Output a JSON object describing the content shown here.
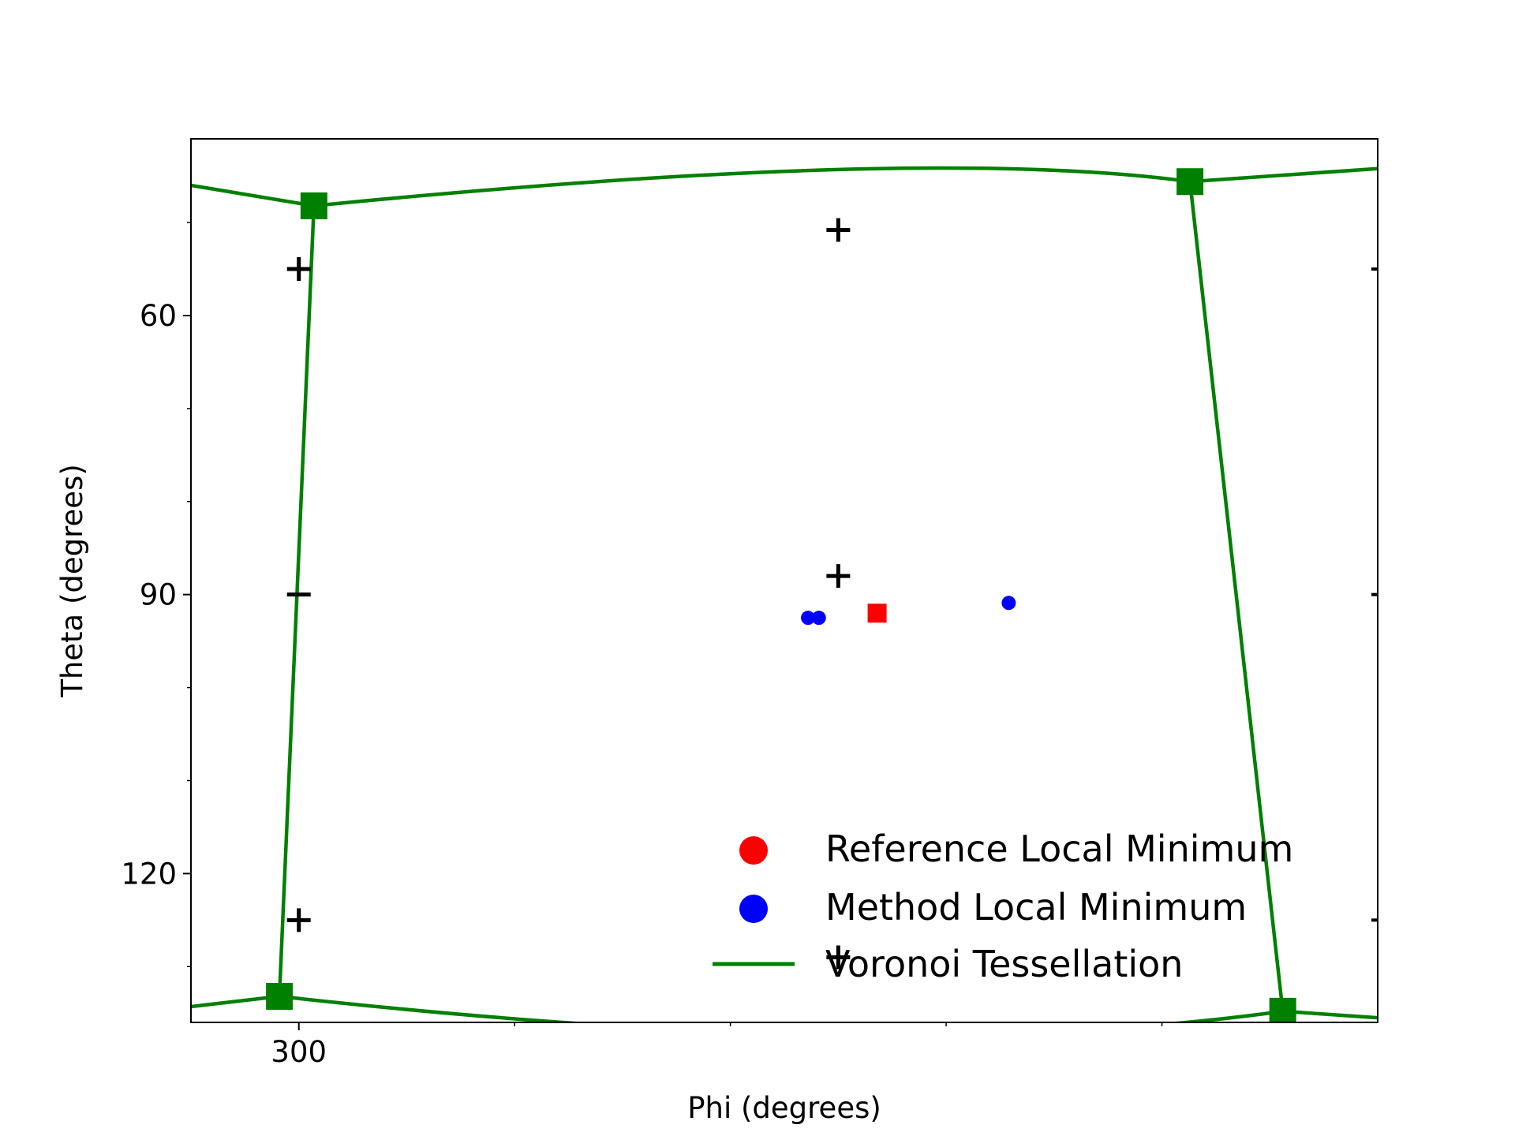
{
  "chart_data": {
    "type": "scatter",
    "xlabel": "Phi (degrees)",
    "ylabel": "Theta (degrees)",
    "xlim": [
      295,
      350
    ],
    "ylim": [
      136,
      41
    ],
    "y_inverted": true,
    "x_major_ticks": [
      300
    ],
    "x_major_tick_labels": [
      "300"
    ],
    "x_minor_ticks": [
      310,
      320,
      330,
      340
    ],
    "y_major_ticks": [
      60,
      90,
      120
    ],
    "y_major_tick_labels": [
      "60",
      "90",
      "120"
    ],
    "y_minor_ticks": [
      50,
      70,
      80,
      100,
      110,
      130
    ],
    "right_ticks": [
      55,
      90,
      125
    ],
    "grid": false,
    "legend_position": "lower right",
    "series": [
      {
        "name": "Reference Local Minimum",
        "marker": "square",
        "color": "#ff0000",
        "points": [
          {
            "x": 326.8,
            "y": 92.0
          }
        ]
      },
      {
        "name": "Method Local Minimum",
        "marker": "circle",
        "color": "#0000ff",
        "points": [
          {
            "x": 323.6,
            "y": 92.5
          },
          {
            "x": 324.1,
            "y": 92.5
          },
          {
            "x": 332.9,
            "y": 90.9
          }
        ]
      },
      {
        "name": "Voronoi Tessellation",
        "line": true,
        "color": "#008000",
        "vertices": [
          {
            "x": 300.7,
            "y": 48.2
          },
          {
            "x": 341.3,
            "y": 45.6
          },
          {
            "x": 345.6,
            "y": 134.8
          },
          {
            "x": 299.1,
            "y": 133.2
          }
        ],
        "edges": [
          [
            {
              "x": 295.0,
              "y": 46.0
            },
            {
              "x": 300.7,
              "y": 48.2
            }
          ],
          [
            {
              "x": 300.7,
              "y": 48.2
            },
            {
              "x": 325.0,
              "y": 44.3
            },
            {
              "x": 341.3,
              "y": 45.6
            }
          ],
          [
            {
              "x": 341.3,
              "y": 45.6
            },
            {
              "x": 350.0,
              "y": 44.2
            }
          ],
          [
            {
              "x": 341.3,
              "y": 45.6
            },
            {
              "x": 345.6,
              "y": 134.8
            }
          ],
          [
            {
              "x": 300.7,
              "y": 48.2
            },
            {
              "x": 299.1,
              "y": 133.2
            }
          ],
          [
            {
              "x": 295.0,
              "y": 134.3
            },
            {
              "x": 299.1,
              "y": 133.2
            }
          ],
          [
            {
              "x": 299.1,
              "y": 133.2
            },
            {
              "x": 325.0,
              "y": 137.3
            },
            {
              "x": 345.6,
              "y": 134.8
            }
          ],
          [
            {
              "x": 345.6,
              "y": 134.8
            },
            {
              "x": 350.0,
              "y": 135.5
            }
          ]
        ]
      },
      {
        "name": "",
        "marker": "plus",
        "color": "#000000",
        "points": [
          {
            "x": 325.0,
            "y": 50.8
          },
          {
            "x": 300.0,
            "y": 55.0
          },
          {
            "x": 325.0,
            "y": 88.0
          },
          {
            "x": 300.0,
            "y": 125.0
          },
          {
            "x": 325.0,
            "y": 129.0
          }
        ]
      },
      {
        "name": "",
        "marker": "minus",
        "color": "#000000",
        "points": [
          {
            "x": 300.0,
            "y": 90.0
          }
        ]
      }
    ]
  }
}
